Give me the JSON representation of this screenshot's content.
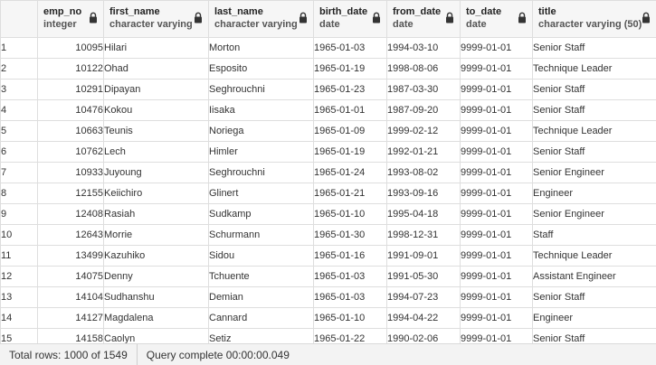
{
  "columns": [
    {
      "name": "emp_no",
      "type": "integer"
    },
    {
      "name": "first_name",
      "type": "character varying"
    },
    {
      "name": "last_name",
      "type": "character varying"
    },
    {
      "name": "birth_date",
      "type": "date"
    },
    {
      "name": "from_date",
      "type": "date"
    },
    {
      "name": "to_date",
      "type": "date"
    },
    {
      "name": "title",
      "type": "character varying (50)"
    }
  ],
  "rows": [
    {
      "n": "1",
      "emp_no": "10095",
      "first_name": "Hilari",
      "last_name": "Morton",
      "birth_date": "1965-01-03",
      "from_date": "1994-03-10",
      "to_date": "9999-01-01",
      "title": "Senior Staff"
    },
    {
      "n": "2",
      "emp_no": "10122",
      "first_name": "Ohad",
      "last_name": "Esposito",
      "birth_date": "1965-01-19",
      "from_date": "1998-08-06",
      "to_date": "9999-01-01",
      "title": "Technique Leader"
    },
    {
      "n": "3",
      "emp_no": "10291",
      "first_name": "Dipayan",
      "last_name": "Seghrouchni",
      "birth_date": "1965-01-23",
      "from_date": "1987-03-30",
      "to_date": "9999-01-01",
      "title": "Senior Staff"
    },
    {
      "n": "4",
      "emp_no": "10476",
      "first_name": "Kokou",
      "last_name": "Iisaka",
      "birth_date": "1965-01-01",
      "from_date": "1987-09-20",
      "to_date": "9999-01-01",
      "title": "Senior Staff"
    },
    {
      "n": "5",
      "emp_no": "10663",
      "first_name": "Teunis",
      "last_name": "Noriega",
      "birth_date": "1965-01-09",
      "from_date": "1999-02-12",
      "to_date": "9999-01-01",
      "title": "Technique Leader"
    },
    {
      "n": "6",
      "emp_no": "10762",
      "first_name": "Lech",
      "last_name": "Himler",
      "birth_date": "1965-01-19",
      "from_date": "1992-01-21",
      "to_date": "9999-01-01",
      "title": "Senior Staff"
    },
    {
      "n": "7",
      "emp_no": "10933",
      "first_name": "Juyoung",
      "last_name": "Seghrouchni",
      "birth_date": "1965-01-24",
      "from_date": "1993-08-02",
      "to_date": "9999-01-01",
      "title": "Senior Engineer"
    },
    {
      "n": "8",
      "emp_no": "12155",
      "first_name": "Keiichiro",
      "last_name": "Glinert",
      "birth_date": "1965-01-21",
      "from_date": "1993-09-16",
      "to_date": "9999-01-01",
      "title": "Engineer"
    },
    {
      "n": "9",
      "emp_no": "12408",
      "first_name": "Rasiah",
      "last_name": "Sudkamp",
      "birth_date": "1965-01-10",
      "from_date": "1995-04-18",
      "to_date": "9999-01-01",
      "title": "Senior Engineer"
    },
    {
      "n": "10",
      "emp_no": "12643",
      "first_name": "Morrie",
      "last_name": "Schurmann",
      "birth_date": "1965-01-30",
      "from_date": "1998-12-31",
      "to_date": "9999-01-01",
      "title": "Staff"
    },
    {
      "n": "11",
      "emp_no": "13499",
      "first_name": "Kazuhiko",
      "last_name": "Sidou",
      "birth_date": "1965-01-16",
      "from_date": "1991-09-01",
      "to_date": "9999-01-01",
      "title": "Technique Leader"
    },
    {
      "n": "12",
      "emp_no": "14075",
      "first_name": "Denny",
      "last_name": "Tchuente",
      "birth_date": "1965-01-03",
      "from_date": "1991-05-30",
      "to_date": "9999-01-01",
      "title": "Assistant Engineer"
    },
    {
      "n": "13",
      "emp_no": "14104",
      "first_name": "Sudhanshu",
      "last_name": "Demian",
      "birth_date": "1965-01-03",
      "from_date": "1994-07-23",
      "to_date": "9999-01-01",
      "title": "Senior Staff"
    },
    {
      "n": "14",
      "emp_no": "14127",
      "first_name": "Magdalena",
      "last_name": "Cannard",
      "birth_date": "1965-01-10",
      "from_date": "1994-04-22",
      "to_date": "9999-01-01",
      "title": "Engineer"
    },
    {
      "n": "15",
      "emp_no": "14158",
      "first_name": "Caolyn",
      "last_name": "Setiz",
      "birth_date": "1965-01-22",
      "from_date": "1990-02-06",
      "to_date": "9999-01-01",
      "title": "Senior Staff"
    }
  ],
  "status": {
    "total_rows": "Total rows: 1000 of 1549",
    "query_complete": "Query complete 00:00:00.049"
  },
  "icons": {
    "column_lock": "lock-icon"
  }
}
